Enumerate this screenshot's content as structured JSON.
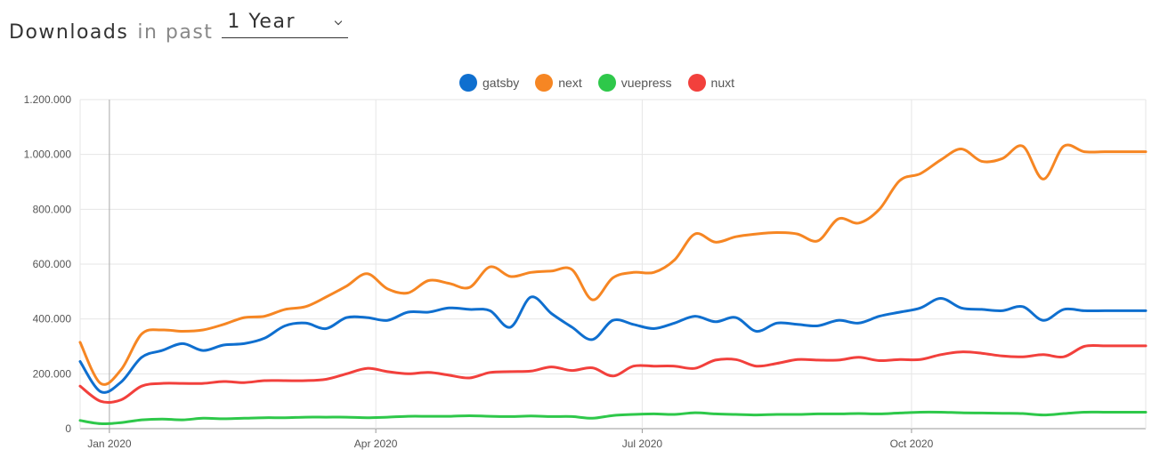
{
  "header": {
    "title": "Downloads",
    "subtitle": "in past",
    "period_selected": "1 Year"
  },
  "chart_data": {
    "type": "line",
    "xlabel": "",
    "ylabel": "",
    "x_start": "2019-12-22",
    "x_end": "2020-12-20",
    "ylim": [
      0,
      1200000
    ],
    "y_ticks": [
      0,
      200000,
      400000,
      600000,
      800000,
      1000000,
      1200000
    ],
    "y_tick_labels": [
      "0",
      "200.000",
      "400.000",
      "600.000",
      "800.000",
      "1.000.000",
      "1.200.000"
    ],
    "x_ticks": [
      "2020-01-01",
      "2020-04-01",
      "2020-07-01",
      "2020-10-01"
    ],
    "x_tick_labels": [
      "Jan 2020",
      "Apr 2020",
      "Jul 2020",
      "Oct 2020"
    ],
    "grid": true,
    "legend_position": "top-center",
    "x": [
      "2019-12-22",
      "2019-12-29",
      "2020-01-05",
      "2020-01-12",
      "2020-01-19",
      "2020-01-26",
      "2020-02-02",
      "2020-02-09",
      "2020-02-16",
      "2020-02-23",
      "2020-03-01",
      "2020-03-08",
      "2020-03-15",
      "2020-03-22",
      "2020-03-29",
      "2020-04-05",
      "2020-04-12",
      "2020-04-19",
      "2020-04-26",
      "2020-05-03",
      "2020-05-10",
      "2020-05-17",
      "2020-05-24",
      "2020-05-31",
      "2020-06-07",
      "2020-06-14",
      "2020-06-21",
      "2020-06-28",
      "2020-07-05",
      "2020-07-12",
      "2020-07-19",
      "2020-07-26",
      "2020-08-02",
      "2020-08-09",
      "2020-08-16",
      "2020-08-23",
      "2020-08-30",
      "2020-09-06",
      "2020-09-13",
      "2020-09-20",
      "2020-09-27",
      "2020-10-04",
      "2020-10-11",
      "2020-10-18",
      "2020-10-25",
      "2020-11-01",
      "2020-11-08",
      "2020-11-15",
      "2020-11-22",
      "2020-11-29",
      "2020-12-06",
      "2020-12-13",
      "2020-12-20"
    ],
    "series": [
      {
        "name": "gatsby",
        "color": "#0f6fcf",
        "values": [
          245000,
          135000,
          170000,
          260000,
          285000,
          310000,
          285000,
          305000,
          310000,
          330000,
          375000,
          385000,
          365000,
          405000,
          405000,
          395000,
          425000,
          425000,
          440000,
          435000,
          430000,
          370000,
          480000,
          420000,
          370000,
          325000,
          395000,
          380000,
          365000,
          385000,
          410000,
          390000,
          405000,
          355000,
          385000,
          380000,
          375000,
          395000,
          385000,
          410000,
          425000,
          440000,
          475000,
          440000,
          435000,
          430000,
          445000,
          395000,
          435000,
          430000,
          430000,
          430000,
          430000
        ]
      },
      {
        "name": "next",
        "color": "#f68623",
        "values": [
          315000,
          165000,
          215000,
          345000,
          360000,
          355000,
          360000,
          380000,
          405000,
          410000,
          435000,
          445000,
          480000,
          520000,
          565000,
          510000,
          495000,
          540000,
          530000,
          515000,
          590000,
          555000,
          570000,
          575000,
          580000,
          470000,
          550000,
          570000,
          570000,
          615000,
          710000,
          680000,
          700000,
          710000,
          715000,
          710000,
          685000,
          765000,
          750000,
          800000,
          905000,
          930000,
          980000,
          1020000,
          975000,
          985000,
          1030000,
          910000,
          1030000,
          1010000,
          1010000,
          1010000,
          1010000
        ]
      },
      {
        "name": "vuepress",
        "color": "#2ec84a",
        "values": [
          30000,
          18000,
          22000,
          32000,
          35000,
          32000,
          38000,
          36000,
          38000,
          40000,
          40000,
          42000,
          42000,
          42000,
          40000,
          42000,
          45000,
          45000,
          45000,
          47000,
          45000,
          44000,
          46000,
          44000,
          44000,
          38000,
          48000,
          52000,
          54000,
          52000,
          58000,
          54000,
          52000,
          50000,
          52000,
          52000,
          54000,
          54000,
          55000,
          54000,
          57000,
          60000,
          60000,
          58000,
          57000,
          56000,
          55000,
          50000,
          55000,
          60000,
          60000,
          60000,
          60000
        ]
      },
      {
        "name": "nuxt",
        "color": "#f2403c",
        "values": [
          155000,
          100000,
          105000,
          155000,
          165000,
          165000,
          165000,
          172000,
          168000,
          175000,
          175000,
          175000,
          180000,
          200000,
          220000,
          208000,
          200000,
          205000,
          195000,
          185000,
          205000,
          208000,
          210000,
          225000,
          212000,
          222000,
          192000,
          228000,
          228000,
          228000,
          220000,
          250000,
          252000,
          228000,
          238000,
          252000,
          250000,
          250000,
          260000,
          248000,
          252000,
          252000,
          270000,
          280000,
          275000,
          265000,
          262000,
          270000,
          262000,
          300000,
          302000,
          302000,
          302000
        ]
      }
    ]
  }
}
